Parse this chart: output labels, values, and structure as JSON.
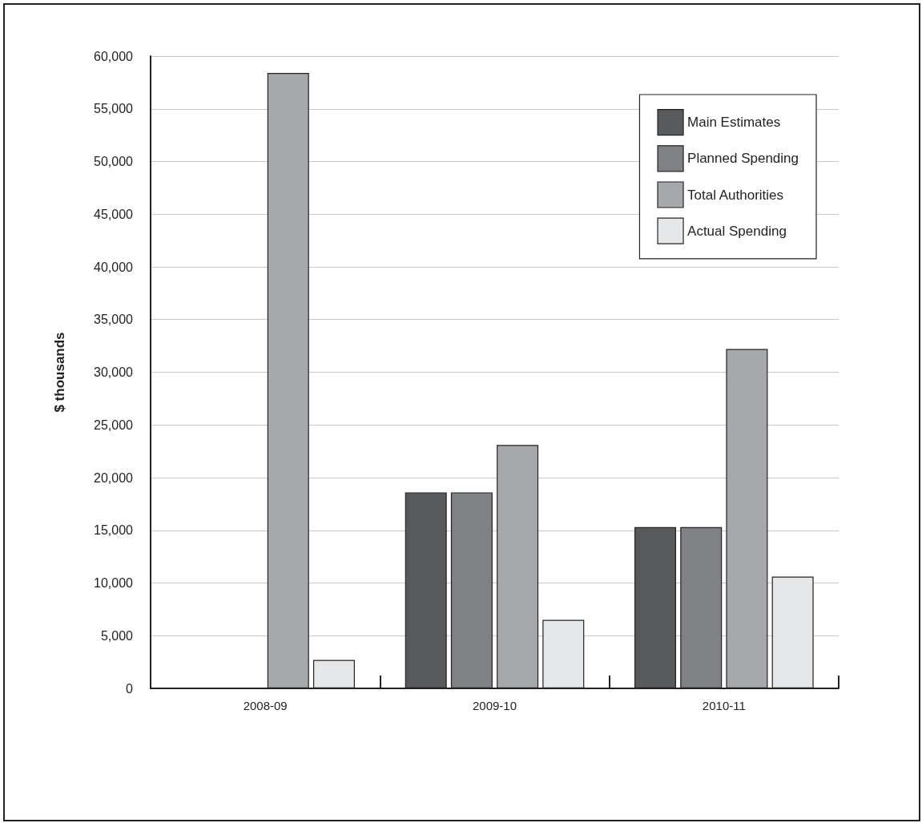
{
  "chart_data": {
    "type": "bar",
    "ylabel": "$ thousands",
    "categories": [
      "2008-09",
      "2009-10",
      "2010-11"
    ],
    "series": [
      {
        "name": "Main Estimates",
        "color": "#58595b",
        "values": [
          null,
          18600,
          15300
        ]
      },
      {
        "name": "Planned Spending",
        "color": "#808184",
        "values": [
          null,
          18600,
          15300
        ]
      },
      {
        "name": "Total Authorities",
        "color": "#a7a8ab",
        "values": [
          58400,
          23100,
          32200
        ]
      },
      {
        "name": "Actual Spending",
        "color": "#e6e7e8",
        "values": [
          2700,
          6500,
          10600
        ]
      }
    ],
    "ylim": [
      0,
      60000
    ],
    "yticks": [
      0,
      {
        "value": 5000,
        "label": "5,000"
      },
      {
        "value": 10000,
        "label": "10,000"
      },
      {
        "value": 15000,
        "label": "15,000"
      },
      {
        "value": 20000,
        "label": "20,000"
      },
      {
        "value": 25000,
        "label": "25,000"
      },
      {
        "value": 30000,
        "label": "30,000"
      },
      {
        "value": 35000,
        "label": "35,000"
      },
      {
        "value": 40000,
        "label": "40,000"
      },
      {
        "value": 45000,
        "label": "45,000"
      },
      {
        "value": 50000,
        "label": "50,000"
      },
      {
        "value": 55000,
        "label": "55,000"
      },
      {
        "value": 60000,
        "label": "60,000"
      }
    ],
    "grid": "y",
    "legend": "top right"
  }
}
